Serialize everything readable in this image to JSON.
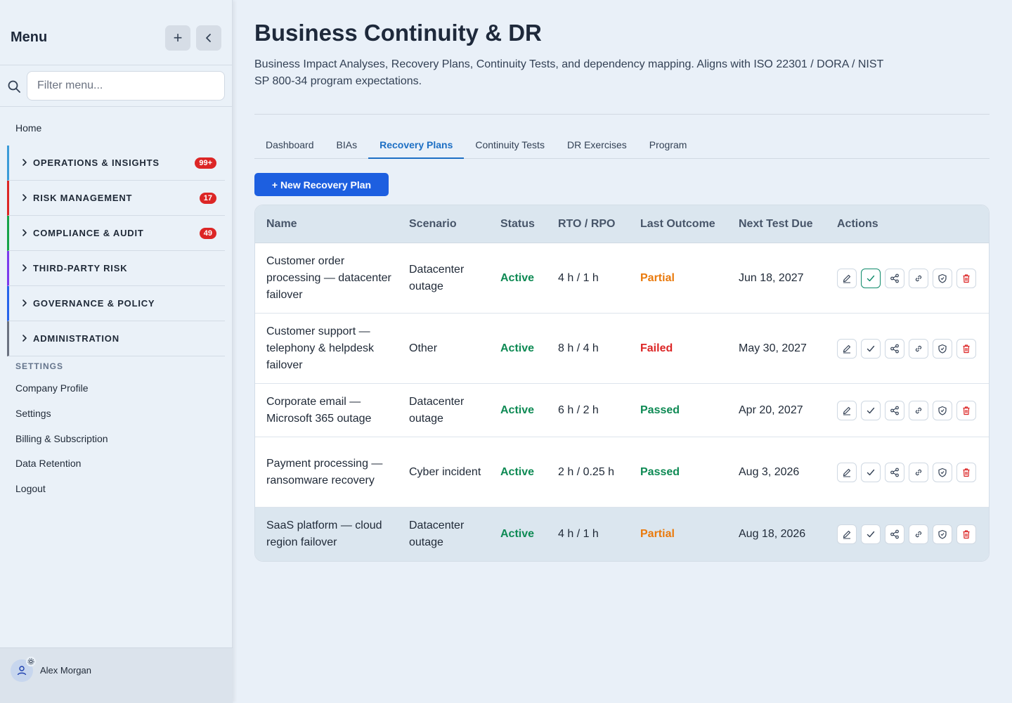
{
  "sidebar": {
    "title": "Menu",
    "filter_placeholder": "Filter menu...",
    "home": "Home",
    "groups": [
      {
        "label": "OPERATIONS & INSIGHTS",
        "badge": "99+",
        "color": "#3b9bd8"
      },
      {
        "label": "RISK MANAGEMENT",
        "badge": "17",
        "color": "#dc2626"
      },
      {
        "label": "COMPLIANCE & AUDIT",
        "badge": "49",
        "color": "#16a34a"
      },
      {
        "label": "THIRD-PARTY RISK",
        "badge": "",
        "color": "#7c3aed"
      },
      {
        "label": "GOVERNANCE & POLICY",
        "badge": "",
        "color": "#2563eb"
      },
      {
        "label": "ADMINISTRATION",
        "badge": "",
        "color": "#6b7280"
      }
    ],
    "settings_heading": "SETTINGS",
    "settings_items": [
      "Company Profile",
      "Settings",
      "Billing & Subscription",
      "Data Retention",
      "Logout"
    ],
    "user_name": "Alex Morgan"
  },
  "page": {
    "title": "Business Continuity & DR",
    "description": "Business Impact Analyses, Recovery Plans, Continuity Tests, and dependency mapping. Aligns with ISO 22301 / DORA / NIST SP 800-34 program expectations.",
    "tabs": [
      "Dashboard",
      "BIAs",
      "Recovery Plans",
      "Continuity Tests",
      "DR Exercises",
      "Program"
    ],
    "active_tab": "Recovery Plans",
    "new_button": "+ New Recovery Plan"
  },
  "table": {
    "headers": [
      "Name",
      "Scenario",
      "Status",
      "RTO / RPO",
      "Last Outcome",
      "Next Test Due",
      "Actions"
    ],
    "rows": [
      {
        "name": "Customer order processing — datacenter failover",
        "scenario": "Datacenter outage",
        "status": "Active",
        "rto_rpo": "4 h / 1 h",
        "outcome": "Partial",
        "next_due": "Jun 18, 2027"
      },
      {
        "name": "Customer support — telephony & helpdesk failover",
        "scenario": "Other",
        "status": "Active",
        "rto_rpo": "8 h / 4 h",
        "outcome": "Failed",
        "next_due": "May 30, 2027"
      },
      {
        "name": "Corporate email — Microsoft 365 outage",
        "scenario": "Datacenter outage",
        "status": "Active",
        "rto_rpo": "6 h / 2 h",
        "outcome": "Passed",
        "next_due": "Apr 20, 2027"
      },
      {
        "name": "Payment processing — ransomware recovery",
        "scenario": "Cyber incident",
        "status": "Active",
        "rto_rpo": "2 h / 0.25 h",
        "outcome": "Passed",
        "next_due": "Aug 3, 2026"
      },
      {
        "name": "SaaS platform — cloud region failover",
        "scenario": "Datacenter outage",
        "status": "Active",
        "rto_rpo": "4 h / 1 h",
        "outcome": "Partial",
        "next_due": "Aug 18, 2026"
      }
    ],
    "outcome_colors": {
      "Partial": "#ea7a0c",
      "Failed": "#dc2626",
      "Passed": "#0e8a54"
    },
    "action_icons": [
      "edit-icon",
      "check-icon",
      "share-icon",
      "link-icon",
      "shield-icon",
      "trash-icon"
    ]
  }
}
